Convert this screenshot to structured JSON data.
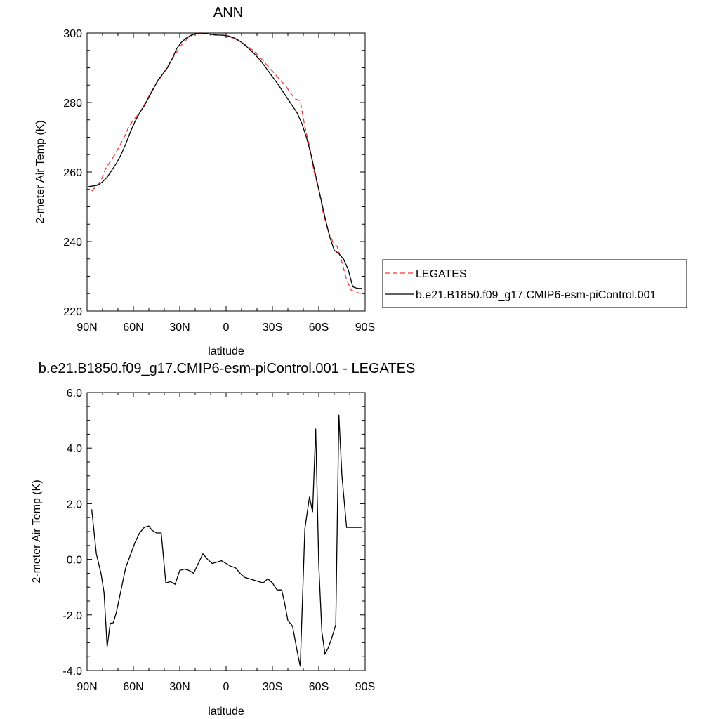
{
  "chart_data": [
    {
      "type": "line",
      "title": "ANN",
      "xlabel": "latitude",
      "ylabel": "2-meter Air Temp (K)",
      "xlim": [
        -90,
        90
      ],
      "ylim": [
        220,
        300
      ],
      "x_ticks": [
        -90,
        -60,
        -30,
        0,
        30,
        60,
        90
      ],
      "x_tick_labels": [
        "90N",
        "60N",
        "30N",
        "0",
        "30S",
        "60S",
        "90S"
      ],
      "y_ticks": [
        220,
        240,
        260,
        280,
        300
      ],
      "y_tick_labels": [
        "220",
        "240",
        "260",
        "280",
        "300"
      ],
      "legend_position": "right",
      "series": [
        {
          "name": "LEGATES",
          "color": "#ff3030",
          "dash": true,
          "x": [
            -87,
            -84,
            -81,
            -78,
            -75,
            -72,
            -69,
            -66,
            -63,
            -60,
            -57,
            -54,
            -51,
            -48,
            -45,
            -42,
            -39,
            -36,
            -33,
            -30,
            -27,
            -24,
            -21,
            -18,
            -15,
            -12,
            -9,
            -6,
            -3,
            0,
            3,
            6,
            9,
            12,
            15,
            18,
            21,
            24,
            27,
            30,
            33,
            36,
            39,
            42,
            45,
            48,
            51,
            54,
            57,
            60,
            63,
            66,
            69,
            72,
            75,
            78,
            81,
            84,
            87
          ],
          "y": [
            254.5,
            256,
            257.5,
            261,
            263,
            265,
            267.5,
            270,
            273,
            275,
            276.5,
            278.5,
            281,
            283.5,
            285.5,
            287.5,
            289.5,
            291.8,
            293.8,
            296,
            297.5,
            298.8,
            299.6,
            300,
            300,
            299.8,
            299.5,
            299.4,
            299.4,
            299.2,
            298.8,
            298.2,
            297.6,
            296.8,
            295.8,
            294.8,
            293.5,
            292,
            290.5,
            289,
            287.5,
            286,
            284.5,
            282.5,
            281,
            280.5,
            273,
            267.5,
            260,
            255,
            248,
            243,
            240,
            238.5,
            234,
            229,
            226,
            225.5,
            225
          ]
        },
        {
          "name": "b.e21.B1850.f09_g17.CMIP6-esm-piControl.001",
          "color": "#000000",
          "dash": false,
          "x": [
            -89,
            -86,
            -83,
            -80,
            -77,
            -74,
            -71,
            -68,
            -65,
            -62,
            -59,
            -56,
            -53,
            -50,
            -47,
            -44,
            -41,
            -38,
            -35,
            -32,
            -29,
            -26,
            -23,
            -20,
            -17,
            -14,
            -11,
            -8,
            -5,
            -2,
            1,
            4,
            7,
            10,
            13,
            16,
            19,
            22,
            25,
            28,
            31,
            34,
            37,
            40,
            43,
            46,
            49,
            52,
            55,
            58,
            61,
            64,
            67,
            70,
            73,
            76,
            79,
            82,
            85,
            88
          ],
          "y": [
            255.8,
            256,
            256.2,
            257.2,
            258.5,
            260.5,
            262.5,
            265,
            268,
            271.5,
            274.5,
            277,
            279,
            281.5,
            284,
            286.5,
            288.2,
            290,
            292.5,
            295.5,
            297.3,
            298.5,
            299.3,
            299.8,
            300,
            299.9,
            299.7,
            299.5,
            299.4,
            299.4,
            299.2,
            298.8,
            298.2,
            297.3,
            296.2,
            295,
            293.7,
            292.2,
            290.5,
            288.6,
            286.8,
            285,
            283,
            281,
            279,
            277,
            274,
            270,
            265,
            259,
            253,
            247,
            241.5,
            237.5,
            236.5,
            235,
            232,
            227,
            226.5,
            226.5
          ]
        }
      ]
    },
    {
      "type": "line",
      "title": "b.e21.B1850.f09_g17.CMIP6-esm-piControl.001 - LEGATES",
      "xlabel": "latitude",
      "ylabel": "2-meter Air Temp (K)",
      "xlim": [
        -90,
        90
      ],
      "ylim": [
        -4,
        6
      ],
      "x_ticks": [
        -90,
        -60,
        -30,
        0,
        30,
        60,
        90
      ],
      "x_tick_labels": [
        "90N",
        "60N",
        "30N",
        "0",
        "30S",
        "60S",
        "90S"
      ],
      "y_ticks": [
        -4,
        -2,
        0,
        2,
        4,
        6
      ],
      "y_tick_labels": [
        "-4.0",
        "-2.0",
        "0.0",
        "2.0",
        "4.0",
        "6.0"
      ],
      "series": [
        {
          "color": "#000000",
          "dash": false,
          "x": [
            -87,
            -84,
            -81,
            -79,
            -77,
            -75,
            -73,
            -71,
            -68,
            -65,
            -62,
            -59,
            -56,
            -53,
            -50,
            -48,
            -45,
            -42,
            -39,
            -36,
            -33,
            -30,
            -27,
            -24,
            -21,
            -18,
            -15,
            -12,
            -9,
            -6,
            -3,
            0,
            3,
            6,
            9,
            12,
            15,
            18,
            21,
            24,
            27,
            30,
            33,
            36,
            38,
            40,
            43,
            46,
            48,
            51,
            54,
            56,
            58,
            60,
            62,
            64,
            66,
            68,
            71,
            73,
            75,
            78,
            81,
            83,
            85,
            88
          ],
          "y": [
            1.8,
            0.2,
            -0.5,
            -1.2,
            -3.15,
            -2.3,
            -2.28,
            -1.9,
            -1.1,
            -0.3,
            0.15,
            0.6,
            0.95,
            1.15,
            1.2,
            1.05,
            0.95,
            0.95,
            -0.85,
            -0.8,
            -0.9,
            -0.4,
            -0.35,
            -0.4,
            -0.5,
            -0.15,
            0.2,
            0.0,
            -0.15,
            -0.1,
            -0.05,
            -0.15,
            -0.25,
            -0.3,
            -0.5,
            -0.65,
            -0.7,
            -0.75,
            -0.8,
            -0.85,
            -0.7,
            -0.85,
            -1.1,
            -1.1,
            -1.6,
            -2.2,
            -2.4,
            -3.3,
            -3.85,
            1.1,
            2.25,
            1.7,
            4.7,
            -0.2,
            -2.6,
            -3.4,
            -3.2,
            -2.9,
            -2.35,
            5.2,
            3.0,
            1.15,
            1.15,
            1.15,
            1.15,
            1.15
          ]
        }
      ]
    }
  ]
}
